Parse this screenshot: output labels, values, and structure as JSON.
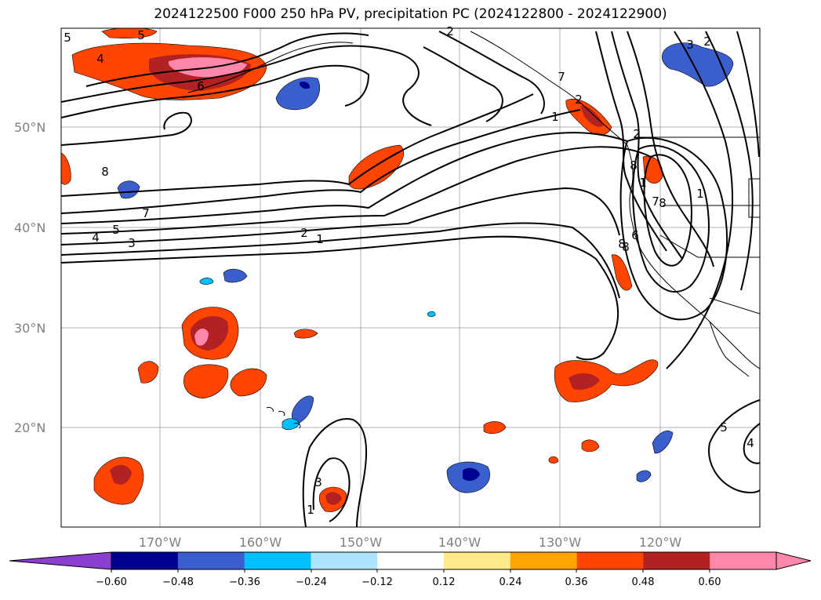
{
  "title": "2024122500 F000 250 hPa PV, precipitation PC (2024122800 - 2024122900)",
  "axes": {
    "lat_labels": [
      "50°N",
      "40°N",
      "30°N",
      "20°N"
    ],
    "lon_labels": [
      "170°W",
      "160°W",
      "150°W",
      "140°W",
      "130°W",
      "120°W"
    ]
  },
  "colorbar": {
    "ticks": [
      "−0.60",
      "−0.48",
      "−0.36",
      "−0.24",
      "−0.12",
      "0.12",
      "0.24",
      "0.36",
      "0.48",
      "0.60"
    ],
    "colors": [
      "#8a3fd1",
      "#000090",
      "#3a5fcd",
      "#00bfff",
      "#aee3ff",
      "#ffffff",
      "#ffe98a",
      "#ffa500",
      "#ff4500",
      "#b22222",
      "#ff88aa",
      "#ff88aa"
    ],
    "under_color": "#8a3fd1",
    "over_color": "#ff88aa"
  },
  "contour_labels": [
    "5",
    "4",
    "5",
    "6",
    "8",
    "7",
    "4",
    "5",
    "3",
    "2",
    "1",
    "2",
    "1",
    "7",
    "8",
    "2",
    "8",
    "1",
    "2",
    "3",
    "1",
    "7",
    "6",
    "8",
    "8",
    "5",
    "4",
    "3",
    "1",
    "2"
  ],
  "colors": {
    "positive_low": "#ffe98a",
    "positive_mid": "#ffa500",
    "positive_high": "#ff4500",
    "positive_vhigh": "#b22222",
    "positive_max": "#ff88aa",
    "negative_low": "#aee3ff",
    "negative_mid": "#00bfff",
    "negative_high": "#3a5fcd",
    "negative_vhigh": "#000090",
    "grid": "#b0b0b0",
    "coast": "#000000"
  }
}
